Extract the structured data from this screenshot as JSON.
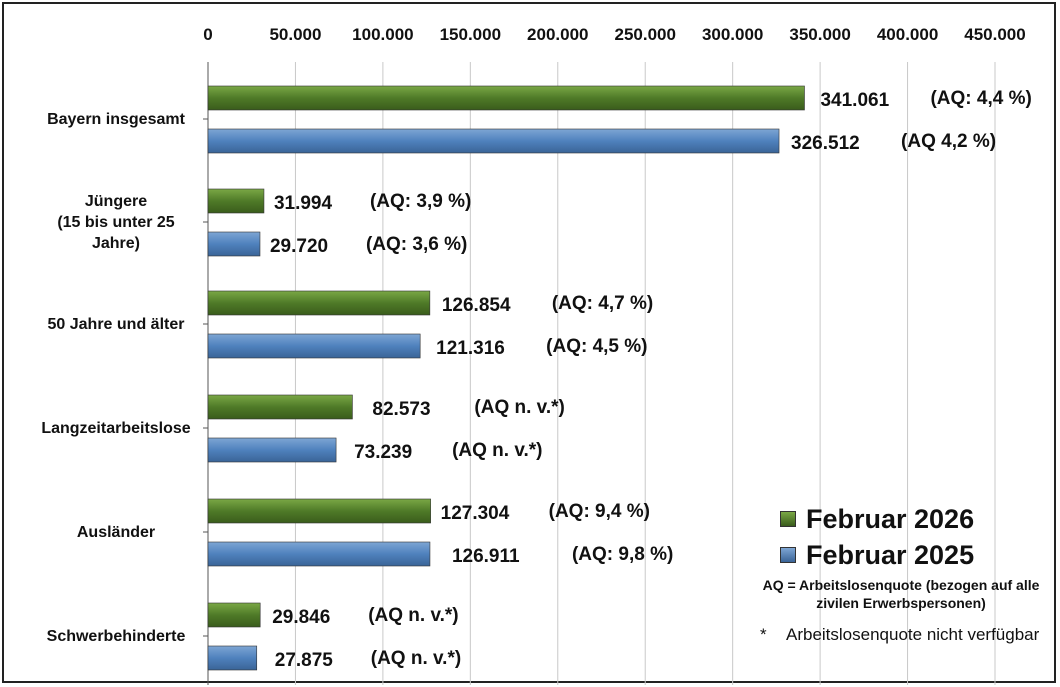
{
  "chart_data": {
    "type": "bar",
    "orientation": "horizontal",
    "categories": [
      "Bayern insgesamt",
      "Jüngere (15 bis unter 25 Jahre)",
      "50 Jahre und älter",
      "Langzeitarbeitslose",
      "Ausländer",
      "Schwerbehinderte"
    ],
    "category_lines": [
      [
        "Bayern insgesamt"
      ],
      [
        "Jüngere",
        "(15 bis unter 25",
        "Jahre)"
      ],
      [
        "50 Jahre und älter"
      ],
      [
        "Langzeitarbeitslose"
      ],
      [
        "Ausländer"
      ],
      [
        "Schwerbehinderte"
      ]
    ],
    "series": [
      {
        "name": "Februar 2026",
        "color": "#4f7a28",
        "values": [
          341061,
          31994,
          126854,
          82573,
          127304,
          29846
        ],
        "labels": [
          "341.061",
          "31.994",
          "126.854",
          "82.573",
          "127.304",
          "29.846"
        ],
        "aq": [
          "(AQ: 4,4 %)",
          "(AQ: 3,9 %)",
          "(AQ: 4,7 %)",
          "(AQ n. v.*)",
          "(AQ: 9,4 %)",
          "(AQ n. v.*)"
        ]
      },
      {
        "name": "Februar 2025",
        "color": "#4f81bd",
        "values": [
          326512,
          29720,
          121316,
          73239,
          126911,
          27875
        ],
        "labels": [
          "326.512",
          "29.720",
          "121.316",
          "73.239",
          "126.911",
          "27.875"
        ],
        "aq": [
          "(AQ 4,2 %)",
          "(AQ: 3,6 %)",
          "(AQ: 4,5 %)",
          "(AQ n. v.*)",
          "(AQ: 9,8 %)",
          "(AQ n. v.*)"
        ]
      }
    ],
    "xlim": [
      0,
      450000
    ],
    "ticks": [
      0,
      50000,
      100000,
      150000,
      200000,
      250000,
      300000,
      350000,
      400000,
      450000
    ],
    "tick_labels": [
      "0",
      "50.000",
      "100.000",
      "150.000",
      "200.000",
      "250.000",
      "300.000",
      "350.000",
      "400.000",
      "450.000"
    ],
    "axis_position": "top",
    "grid": true,
    "legend_position": "bottom-right"
  },
  "notes": {
    "aq_definition": "AQ = Arbeitslosenquote (bezogen auf alle zivilen Erwerbspersonen)",
    "star_symbol": "*",
    "star_text": "Arbeitslosenquote nicht verfügbar"
  }
}
